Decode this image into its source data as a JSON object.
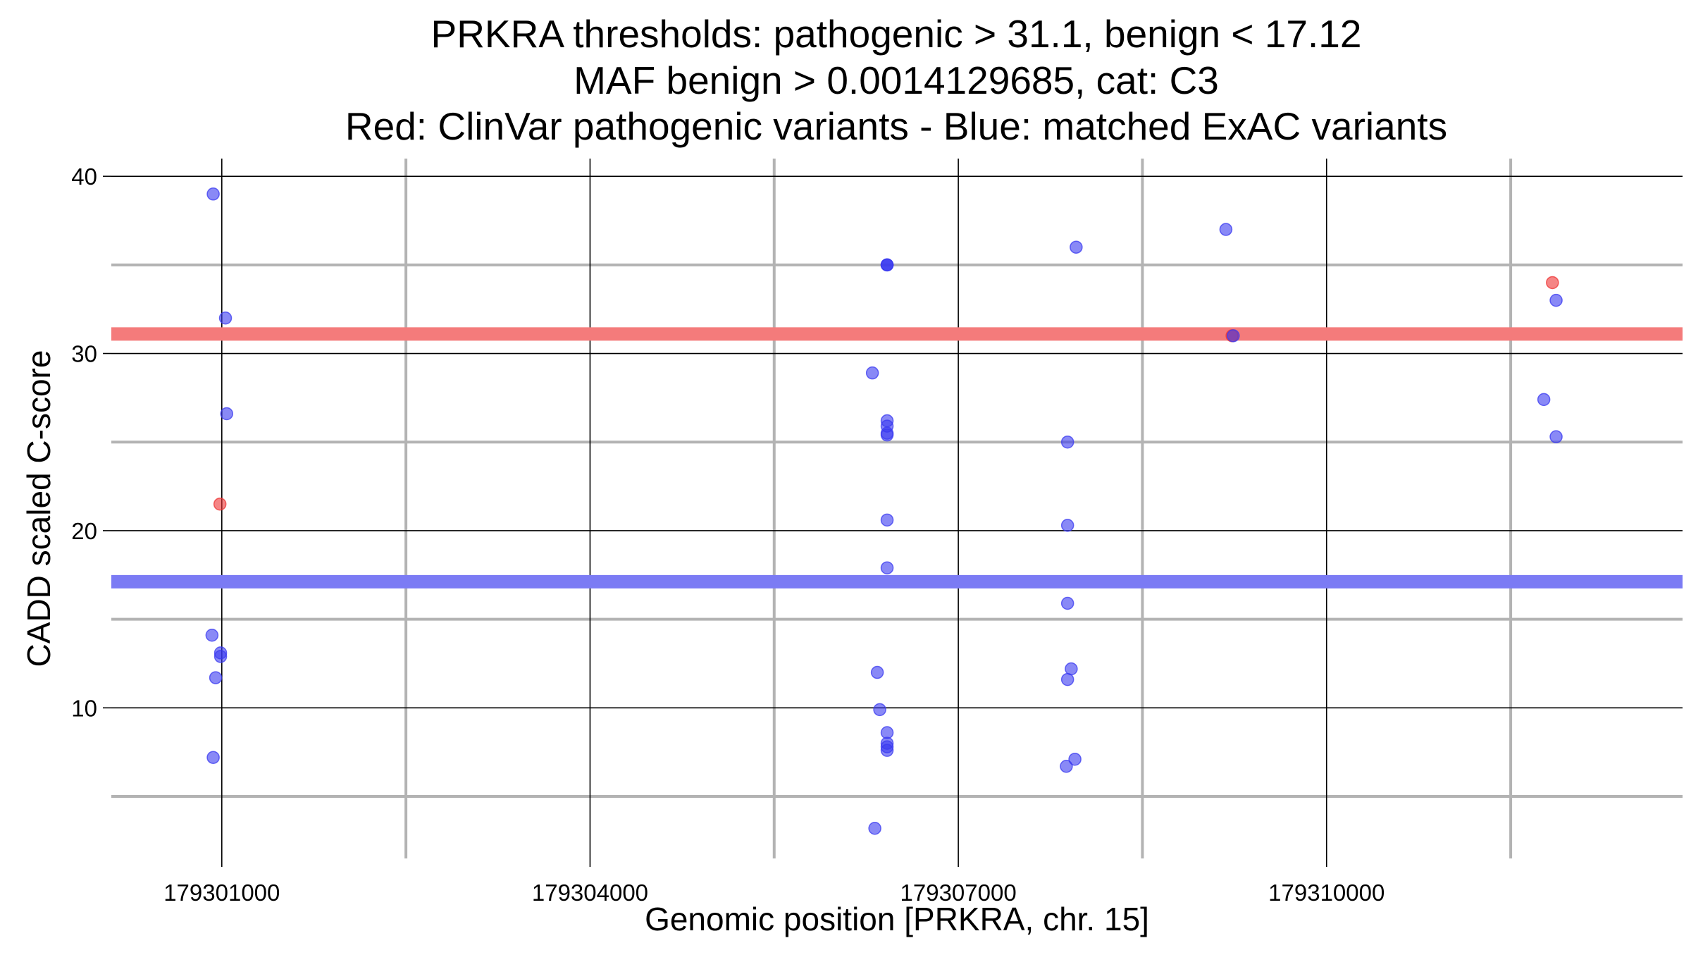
{
  "chart_data": {
    "type": "scatter",
    "title_lines": [
      "PRKRA thresholds: pathogenic > 31.1, benign < 17.12",
      "MAF benign > 0.0014129685, cat: C3",
      "Red: ClinVar pathogenic variants - Blue: matched ExAC variants"
    ],
    "xlabel": "Genomic position [PRKRA, chr. 15]",
    "ylabel": "CADD scaled C-score",
    "xlim": [
      179300100,
      179312900
    ],
    "ylim": [
      1.5,
      41
    ],
    "x_major_ticks": [
      179301000,
      179304000,
      179307000,
      179310000
    ],
    "x_minor_ticks": [
      179302500,
      179305500,
      179308500,
      179311500
    ],
    "x_tick_labels": [
      "179301000",
      "179304000",
      "179307000",
      "179310000"
    ],
    "y_major_ticks": [
      10,
      20,
      30,
      40
    ],
    "y_minor_ticks": [
      5,
      15,
      25,
      35
    ],
    "y_tick_labels": [
      "10",
      "20",
      "30",
      "40"
    ],
    "grid": true,
    "thresholds": [
      {
        "value": 31.1,
        "color": "#f47b7b"
      },
      {
        "value": 17.12,
        "color": "#7b7bf4"
      }
    ],
    "series": [
      {
        "color": "#ee3333",
        "points": [
          [
            179300985,
            21.5
          ],
          [
            179309230,
            31
          ],
          [
            179311840,
            34
          ]
        ]
      },
      {
        "color": "#3a3af0",
        "points": [
          [
            179300930,
            39
          ],
          [
            179301030,
            32
          ],
          [
            179301040,
            26.6
          ],
          [
            179300920,
            14.1
          ],
          [
            179300990,
            13.1
          ],
          [
            179300990,
            12.9
          ],
          [
            179300950,
            11.7
          ],
          [
            179300930,
            7.2
          ],
          [
            179306420,
            35
          ],
          [
            179306420,
            35
          ],
          [
            179306420,
            35
          ],
          [
            179306300,
            28.9
          ],
          [
            179306420,
            26.2
          ],
          [
            179306420,
            25.9
          ],
          [
            179306420,
            25.5
          ],
          [
            179306420,
            25.4
          ],
          [
            179306420,
            20.6
          ],
          [
            179306420,
            17.9
          ],
          [
            179306340,
            12
          ],
          [
            179306360,
            9.9
          ],
          [
            179306420,
            8.6
          ],
          [
            179306420,
            8.0
          ],
          [
            179306420,
            7.8
          ],
          [
            179306420,
            7.6
          ],
          [
            179306320,
            3.2
          ],
          [
            179307960,
            36
          ],
          [
            179307890,
            25
          ],
          [
            179307890,
            20.3
          ],
          [
            179307890,
            15.9
          ],
          [
            179307920,
            12.2
          ],
          [
            179307890,
            11.6
          ],
          [
            179307950,
            7.1
          ],
          [
            179307880,
            6.7
          ],
          [
            179309180,
            37
          ],
          [
            179309240,
            31
          ],
          [
            179311870,
            33
          ],
          [
            179311770,
            27.4
          ],
          [
            179311870,
            25.3
          ]
        ]
      }
    ]
  }
}
